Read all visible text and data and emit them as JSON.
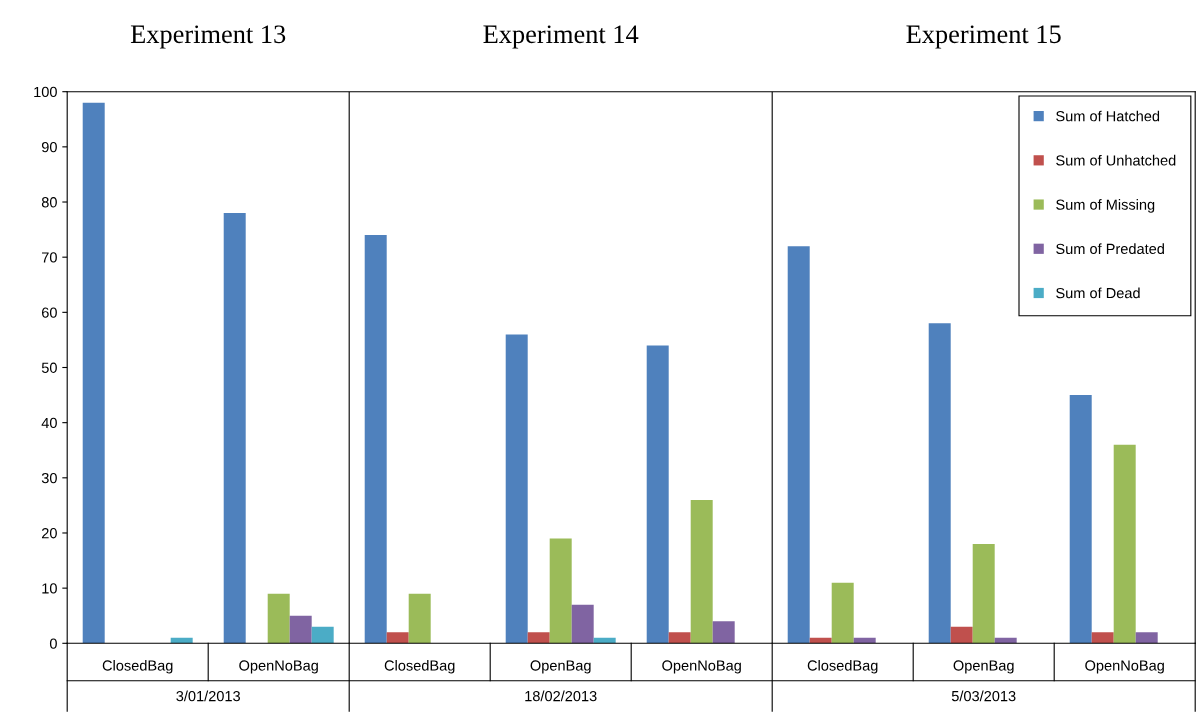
{
  "chart_data": {
    "type": "bar",
    "categories": [
      "ClosedBag",
      "OpenNoBag",
      "ClosedBag",
      "OpenBag",
      "OpenNoBag",
      "ClosedBag",
      "OpenBag",
      "OpenNoBag"
    ],
    "series": [
      {
        "name": "Sum of Hatched",
        "color": "#4f81bd",
        "values": [
          98,
          78,
          74,
          56,
          54,
          72,
          58,
          45
        ]
      },
      {
        "name": "Sum of Unhatched",
        "color": "#c0504d",
        "values": [
          null,
          null,
          2,
          2,
          2,
          1,
          3,
          2
        ]
      },
      {
        "name": "Sum of Missing",
        "color": "#9bbb59",
        "values": [
          null,
          9,
          9,
          19,
          26,
          11,
          18,
          36
        ]
      },
      {
        "name": "Sum of Predated",
        "color": "#8064a2",
        "values": [
          null,
          5,
          null,
          7,
          4,
          1,
          1,
          2
        ]
      },
      {
        "name": "Sum of Dead",
        "color": "#4bacc6",
        "values": [
          1,
          3,
          null,
          1,
          null,
          null,
          null,
          null
        ]
      }
    ],
    "ylim": [
      0,
      100
    ],
    "yticks": [
      0,
      10,
      20,
      30,
      40,
      50,
      60,
      70,
      80,
      90,
      100
    ],
    "grid": false,
    "legend": "top right",
    "annotations": [
      "Experiment 13",
      "Experiment 14",
      "Experiment 15",
      "3/01/2013",
      "18/02/2013",
      "5/03/2013"
    ]
  }
}
